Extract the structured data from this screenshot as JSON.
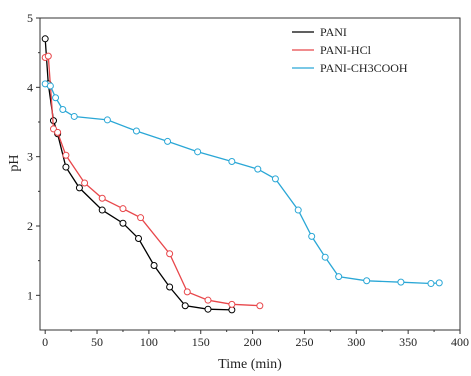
{
  "chart_data": {
    "type": "line",
    "xlabel": "Time (min)",
    "ylabel": "pH",
    "xlim": [
      -5,
      400
    ],
    "ylim": [
      0.5,
      5
    ],
    "xticks": [
      0,
      50,
      100,
      150,
      200,
      250,
      300,
      350,
      400
    ],
    "yticks": [
      1,
      2,
      3,
      4,
      5
    ],
    "grid": false,
    "legend_position": "top-right",
    "series": [
      {
        "name": "PANI",
        "color": "#000000",
        "marker": "open-circle",
        "x": [
          0,
          3,
          8,
          12,
          20,
          33,
          55,
          75,
          90,
          105,
          120,
          135,
          157,
          180
        ],
        "y": [
          4.7,
          4.05,
          3.52,
          3.33,
          2.85,
          2.55,
          2.23,
          2.04,
          1.82,
          1.43,
          1.12,
          0.85,
          0.8,
          0.79
        ]
      },
      {
        "name": "PANI-HCl",
        "color": "#e8474b",
        "marker": "open-circle",
        "x": [
          0,
          3,
          8,
          12,
          20,
          38,
          55,
          75,
          92,
          120,
          137,
          157,
          180,
          207
        ],
        "y": [
          4.43,
          4.45,
          3.4,
          3.35,
          3.02,
          2.62,
          2.4,
          2.25,
          2.12,
          1.6,
          1.05,
          0.93,
          0.87,
          0.85
        ]
      },
      {
        "name": "PANI-CH3COOH",
        "color": "#2aa7d6",
        "marker": "open-circle",
        "x": [
          0,
          5,
          10,
          17,
          28,
          60,
          88,
          118,
          147,
          180,
          205,
          222,
          244,
          257,
          270,
          283,
          310,
          343,
          372,
          380
        ],
        "y": [
          4.05,
          4.02,
          3.85,
          3.68,
          3.58,
          3.53,
          3.37,
          3.22,
          3.07,
          2.93,
          2.82,
          2.68,
          2.23,
          1.85,
          1.55,
          1.27,
          1.21,
          1.19,
          1.17,
          1.18
        ]
      }
    ]
  }
}
